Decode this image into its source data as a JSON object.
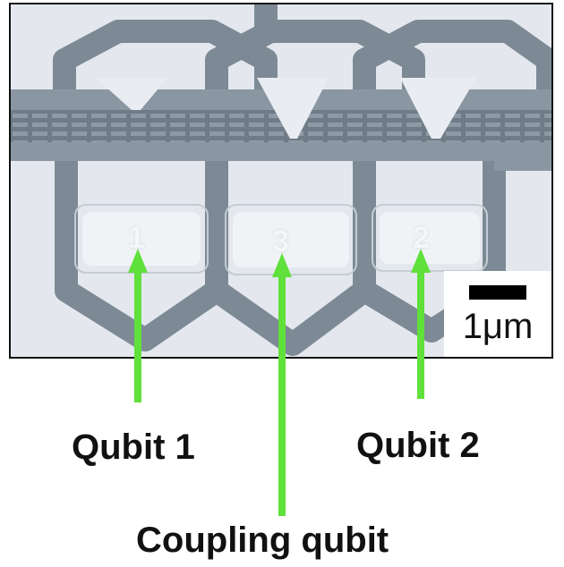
{
  "micrograph": {
    "qubit_numbers": [
      "1",
      "3",
      "2"
    ],
    "scale_bar_label": "1μm"
  },
  "labels": {
    "qubit1": "Qubit 1",
    "qubit2": "Qubit 2",
    "coupling": "Coupling qubit"
  },
  "colors": {
    "arrow": "#5fe03a",
    "circuit": "#7a8895",
    "background": "#e4e8ee"
  }
}
